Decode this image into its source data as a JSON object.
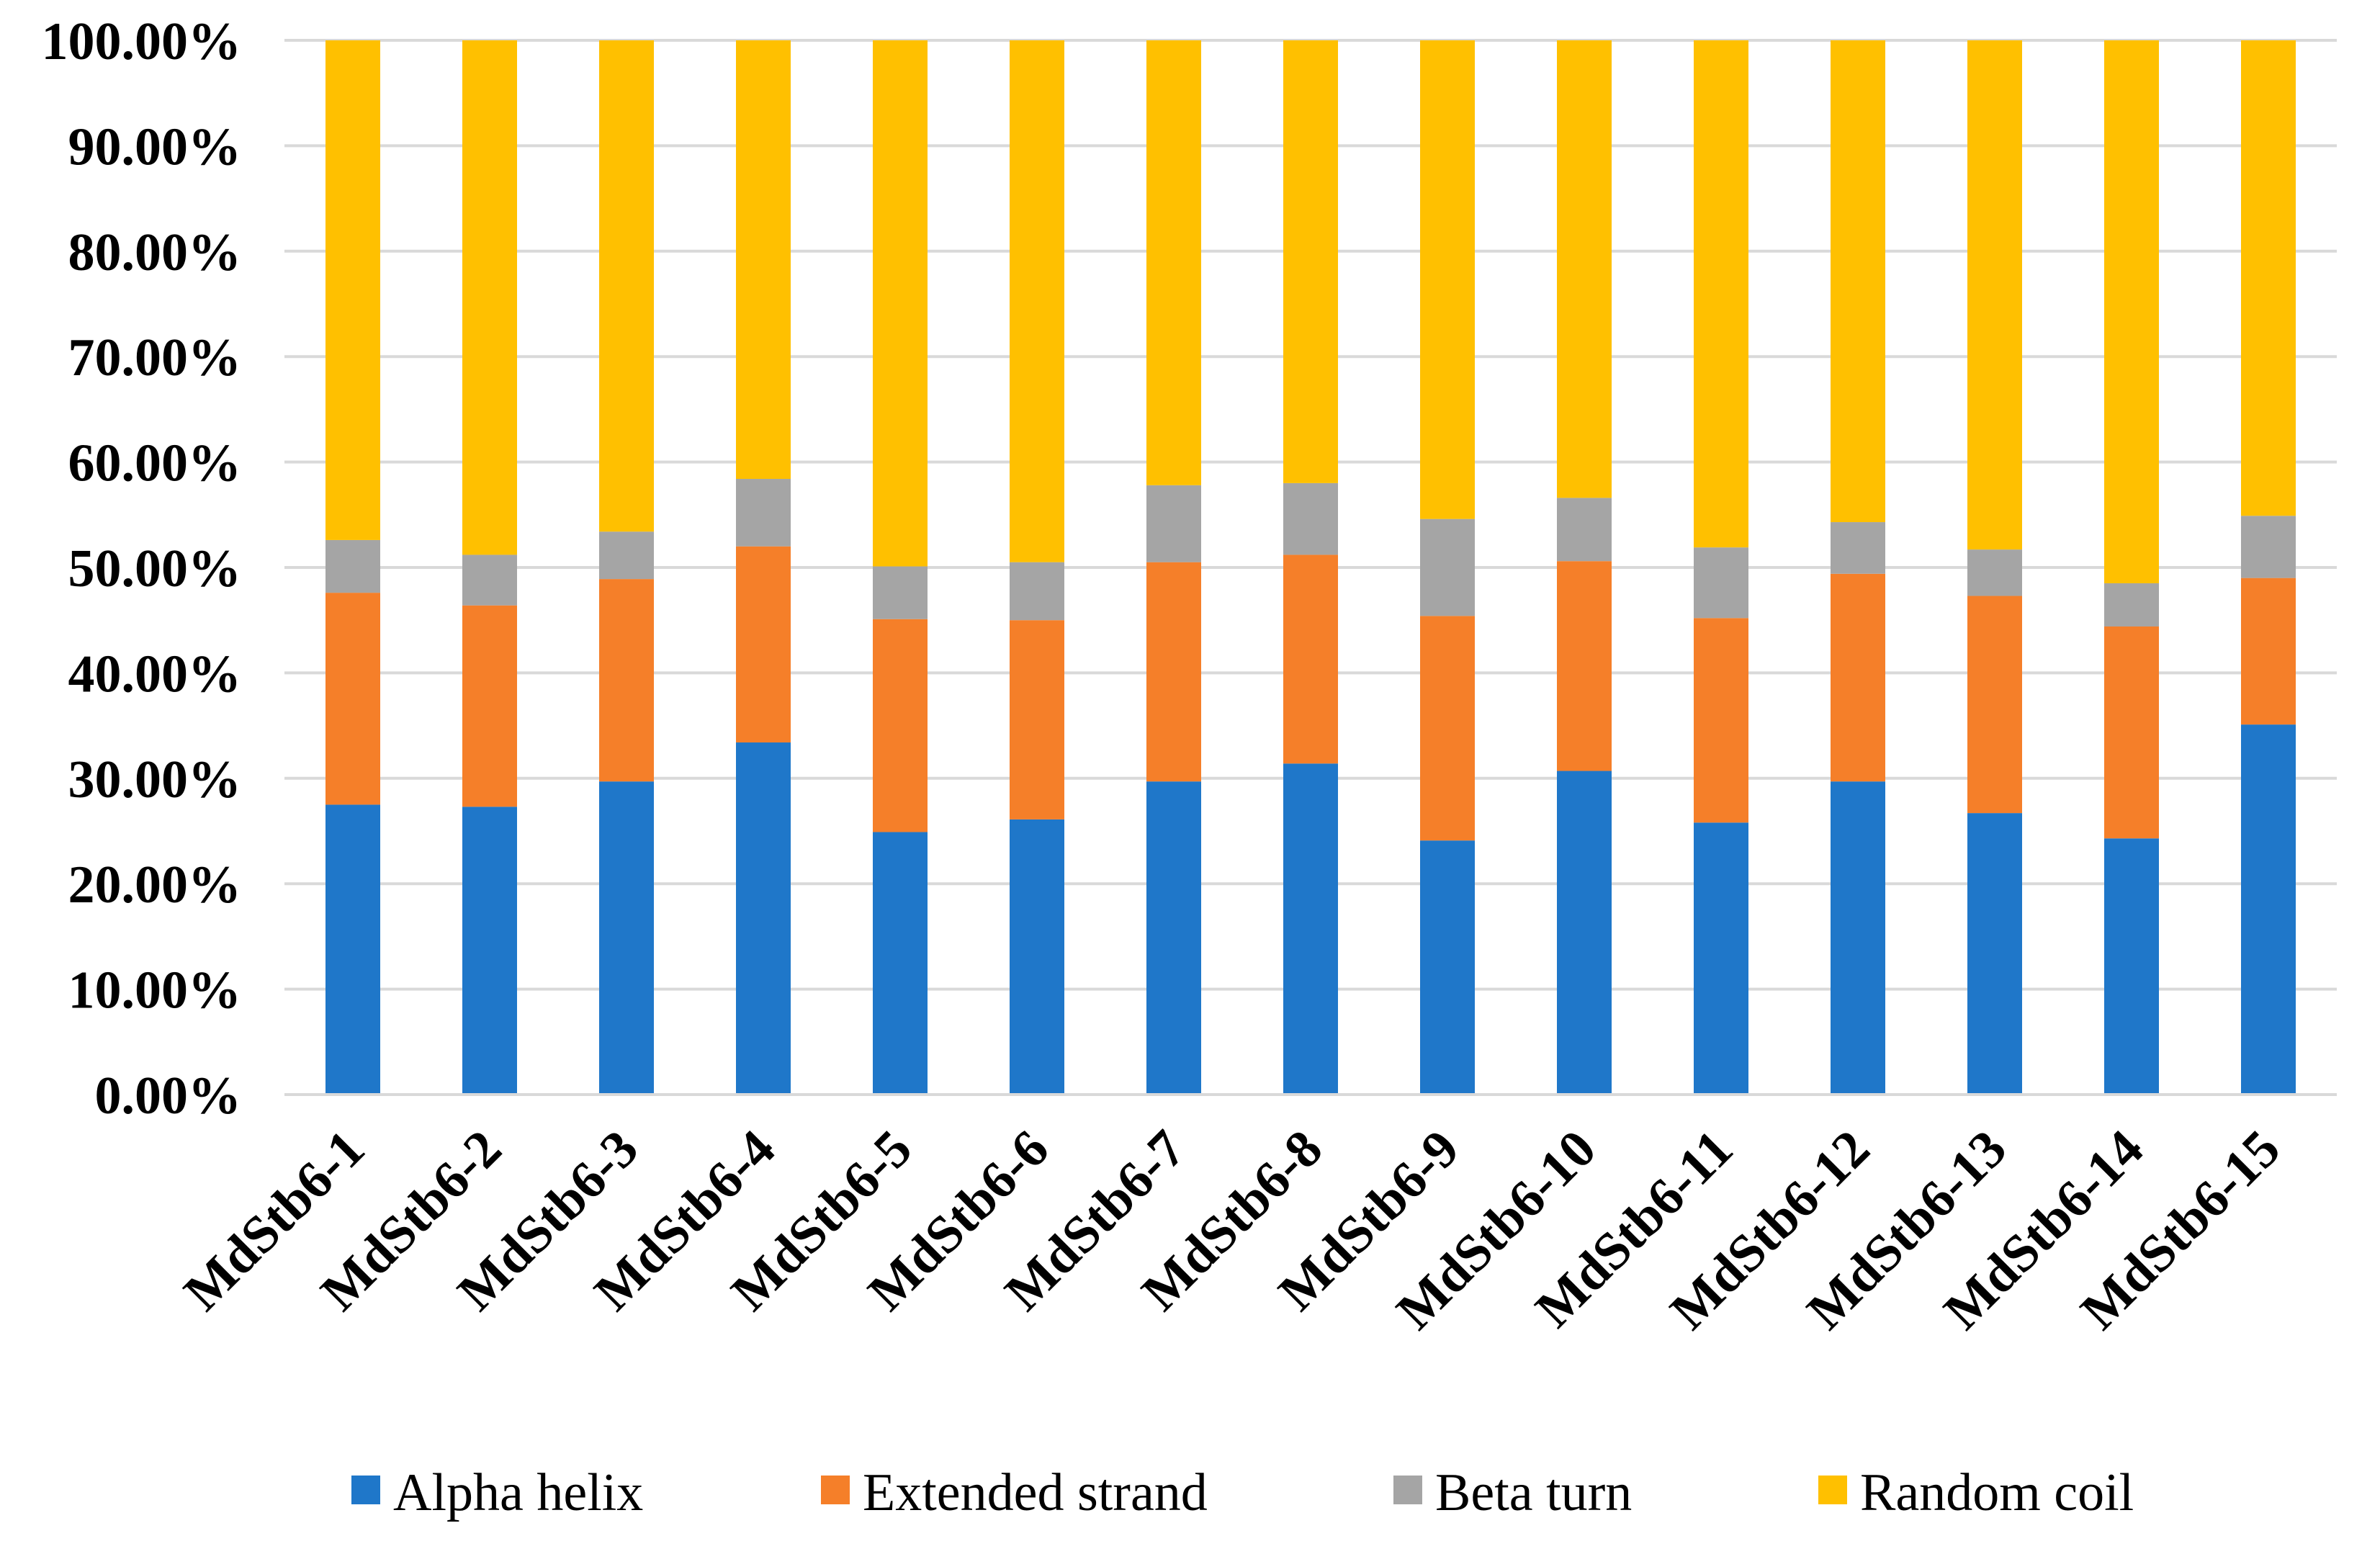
{
  "chart_data": {
    "type": "bar",
    "stacked": true,
    "title": "",
    "xlabel": "",
    "ylabel": "",
    "ylim": [
      0,
      100
    ],
    "yticks": [
      "0.00%",
      "10.00%",
      "20.00%",
      "30.00%",
      "40.00%",
      "50.00%",
      "60.00%",
      "70.00%",
      "80.00%",
      "90.00%",
      "100.00%"
    ],
    "grid": true,
    "legend_position": "bottom",
    "categories": [
      "MdStb6-1",
      "MdStb6-2",
      "MdStb6-3",
      "MdStb6-4",
      "MdStb6-5",
      "MdStb6-6",
      "MdStb6-7",
      "MdStb6-8",
      "MdStb6-9",
      "MdStb6-10",
      "MdStb6-11",
      "MdStb6-12",
      "MdStb6-13",
      "MdStb6-14",
      "MdStb6-15"
    ],
    "series": [
      {
        "name": "Alpha helix",
        "color": "#1f77c9",
        "values": [
          27.5,
          27.3,
          29.7,
          33.4,
          24.9,
          26.1,
          29.7,
          31.4,
          24.1,
          30.7,
          25.8,
          29.7,
          26.7,
          24.3,
          35.1
        ]
      },
      {
        "name": "Extended strand",
        "color": "#f57f29",
        "values": [
          20.1,
          19.1,
          19.2,
          18.6,
          20.2,
          18.9,
          20.8,
          19.8,
          21.3,
          19.9,
          19.4,
          19.7,
          20.6,
          20.1,
          13.9
        ]
      },
      {
        "name": "Beta turn",
        "color": "#a5a5a5",
        "values": [
          5.0,
          4.8,
          4.5,
          6.4,
          5.0,
          5.5,
          7.3,
          6.8,
          9.2,
          6.0,
          6.7,
          4.9,
          4.4,
          4.1,
          5.9
        ]
      },
      {
        "name": "Random coil",
        "color": "#ffc000",
        "values": [
          47.4,
          48.8,
          46.6,
          41.6,
          49.9,
          49.5,
          42.2,
          42.0,
          45.4,
          43.4,
          48.1,
          45.7,
          48.3,
          51.5,
          45.1
        ]
      }
    ]
  }
}
